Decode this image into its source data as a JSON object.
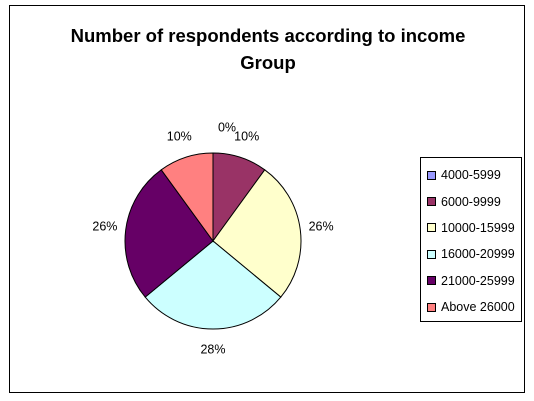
{
  "chart_data": {
    "type": "pie",
    "title_lines": [
      "Number of respondents according to income",
      "Group"
    ],
    "categories": [
      "4000-5999",
      "6000-9999",
      "10000-15999",
      "16000-20999",
      "21000-25999",
      "Above 26000"
    ],
    "values": [
      0,
      10,
      26,
      28,
      26,
      10
    ],
    "labels": [
      "0%",
      "10%",
      "26%",
      "28%",
      "26%",
      "10%"
    ],
    "colors": [
      "#9999ff",
      "#993366",
      "#ffffcc",
      "#ccffff",
      "#660066",
      "#ff8080"
    ],
    "legend_position": "right"
  }
}
